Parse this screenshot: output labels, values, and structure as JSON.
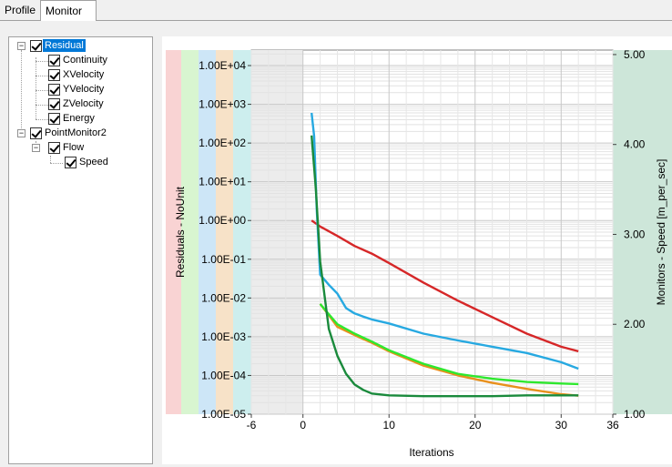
{
  "tabs": [
    {
      "label": "Profile",
      "active": false
    },
    {
      "label": "Monitor",
      "active": true
    }
  ],
  "tree": [
    {
      "label": "Residual",
      "level": 0,
      "checked": true,
      "expand": "-",
      "selected": true
    },
    {
      "label": "Continuity",
      "level": 1,
      "checked": true
    },
    {
      "label": "XVelocity",
      "level": 1,
      "checked": true
    },
    {
      "label": "YVelocity",
      "level": 1,
      "checked": true
    },
    {
      "label": "ZVelocity",
      "level": 1,
      "checked": true
    },
    {
      "label": "Energy",
      "level": 1,
      "checked": true
    },
    {
      "label": "PointMonitor2",
      "level": 0,
      "checked": true,
      "expand": "-"
    },
    {
      "label": "Flow",
      "level": 1,
      "checked": true,
      "expand": "-"
    },
    {
      "label": "Speed",
      "level": 2,
      "checked": true
    }
  ],
  "chart_data": {
    "type": "line",
    "xlabel": "Iterations",
    "ylabel_left": "Residuals - NoUnit",
    "ylabel_right": "Monitors - Speed [m_per_sec]",
    "x_ticks": [
      "-6",
      "0",
      "10",
      "20",
      "30",
      "36"
    ],
    "y_left_ticks": [
      "1.00E+04",
      "1.00E+03",
      "1.00E+02",
      "1.00E+01",
      "1.00E+00",
      "1.00E-01",
      "1.00E-02",
      "1.00E-03",
      "1.00E-04",
      "1.00E-05"
    ],
    "y_right_ticks": [
      "5.00",
      "4.00",
      "3.00",
      "2.00",
      "1.00"
    ],
    "xlim": [
      -6,
      36
    ],
    "ylim_left_log10": [
      -5,
      4.4
    ],
    "ylim_right": [
      1.0,
      5.05
    ],
    "y_left_scale": "log",
    "grid": true,
    "band_colors": [
      "#f9d3d3",
      "#d8f5d0",
      "#cde6f7",
      "#f7e2c8",
      "#cdeeee",
      "#cde6d9"
    ],
    "series": [
      {
        "color": "#d62728",
        "axis": "left",
        "x": [
          1,
          2,
          4,
          6,
          8,
          10,
          14,
          18,
          22,
          26,
          30,
          32
        ],
        "y": [
          1.0,
          0.7,
          0.4,
          0.22,
          0.14,
          0.08,
          0.025,
          0.0085,
          0.0032,
          0.0012,
          0.00055,
          0.00042
        ]
      },
      {
        "color": "#27a9e1",
        "axis": "left",
        "x": [
          1,
          1.3,
          1.6,
          2,
          3,
          4,
          5,
          6,
          7,
          8,
          10,
          14,
          18,
          22,
          26,
          30,
          32
        ],
        "y": [
          600,
          150,
          2,
          0.04,
          0.022,
          0.013,
          0.0055,
          0.004,
          0.0033,
          0.0028,
          0.0022,
          0.0012,
          0.0008,
          0.00055,
          0.00038,
          0.00022,
          0.00015
        ]
      },
      {
        "color": "#e8901c",
        "axis": "left",
        "x": [
          2,
          3,
          4,
          6,
          8,
          10,
          14,
          18,
          22,
          26,
          30,
          32
        ],
        "y": [
          0.007,
          0.0036,
          0.0018,
          0.0011,
          0.0007,
          0.00042,
          0.00018,
          0.0001,
          6.43e-05,
          4.5e-05,
          3.28e-05,
          3e-05
        ]
      },
      {
        "color": "#2ee82e",
        "axis": "left",
        "x": [
          2,
          3,
          4,
          6,
          8,
          10,
          14,
          18,
          22,
          26,
          30,
          32
        ],
        "y": [
          0.007,
          0.0038,
          0.0021,
          0.0012,
          0.00075,
          0.00045,
          0.0002,
          0.00011,
          8.2e-05,
          6.8e-05,
          6.2e-05,
          6e-05
        ]
      },
      {
        "color": "#1a8a3c",
        "axis": "right",
        "x": [
          1,
          1.5,
          2,
          3,
          4,
          5,
          6,
          7,
          8,
          10,
          14,
          18,
          22,
          26,
          30,
          32
        ],
        "y": [
          4.1,
          3.5,
          2.7,
          1.95,
          1.65,
          1.45,
          1.33,
          1.27,
          1.23,
          1.21,
          1.2,
          1.2,
          1.2,
          1.21,
          1.21,
          1.21
        ]
      }
    ]
  }
}
